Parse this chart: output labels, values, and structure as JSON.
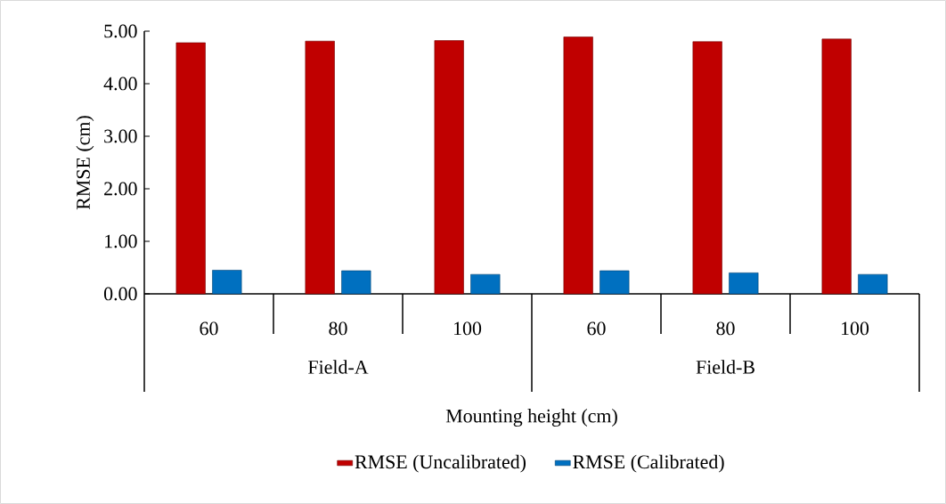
{
  "chart_data": {
    "type": "bar",
    "xlabel": "Mounting height (cm)",
    "ylabel": "RMSE (cm)",
    "categories": [
      "60",
      "80",
      "100",
      "60",
      "80",
      "100"
    ],
    "series": [
      {
        "name": "RMSE (Uncalibrated)",
        "color": "#c00000",
        "values": [
          4.78,
          4.81,
          4.82,
          4.89,
          4.8,
          4.85
        ]
      },
      {
        "name": "RMSE (Calibrated)",
        "color": "#0070c0",
        "values": [
          0.45,
          0.44,
          0.37,
          0.44,
          0.4,
          0.37
        ]
      }
    ],
    "ylim": [
      0,
      5
    ],
    "yticks": [
      {
        "value": 0,
        "label": "0.00"
      },
      {
        "value": 1,
        "label": "1.00"
      },
      {
        "value": 2,
        "label": "2.00"
      },
      {
        "value": 3,
        "label": "3.00"
      },
      {
        "value": 4,
        "label": "4.00"
      },
      {
        "value": 5,
        "label": "5.00"
      }
    ],
    "annotations": [
      "Field-A",
      "Field-B"
    ],
    "grid": false,
    "legend": "bottom"
  }
}
